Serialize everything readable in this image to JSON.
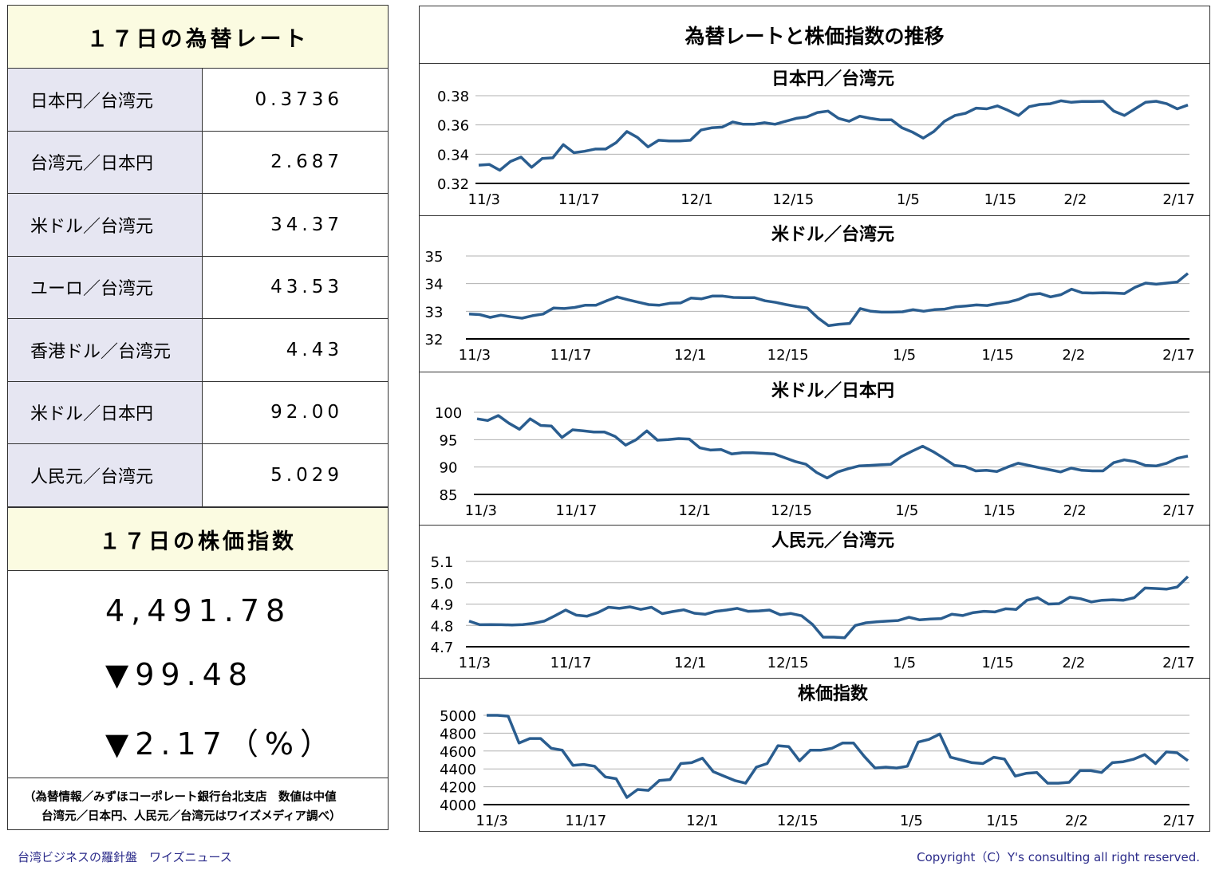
{
  "rates": {
    "title": "１７日の為替レート",
    "rows": [
      {
        "name": "日本円／台湾元",
        "value": "0.3736"
      },
      {
        "name": "台湾元／日本円",
        "value": "2.687"
      },
      {
        "name": "米ドル／台湾元",
        "value": "34.37"
      },
      {
        "name": "ユーロ／台湾元",
        "value": "43.53"
      },
      {
        "name": "香港ドル／台湾元",
        "value": "4.43"
      },
      {
        "name": "米ドル／日本円",
        "value": "92.00"
      },
      {
        "name": "人民元／台湾元",
        "value": "5.029"
      }
    ]
  },
  "stock": {
    "title": "１７日の株価指数",
    "index": "4,491.78",
    "change": "▼99.48",
    "change_pct": "▼2.17（%）"
  },
  "source": {
    "line1": "（為替情報／みずほコーポレート銀行台北支店　数値は中値",
    "line2": "台湾元／日本円、人民元／台湾元はワイズメディア調べ）"
  },
  "trend_title": "為替レートと株価指数の推移",
  "x_labels": [
    "11/3",
    "11/17",
    "12/1",
    "12/15",
    "1/5",
    "1/15",
    "2/2",
    "2/17"
  ],
  "colors": {
    "line": "#2a5d8f",
    "grid": "#b0b0b0",
    "axis": "#000000"
  },
  "chart_data": [
    {
      "type": "line",
      "title": "日本円／台湾元",
      "ylim": [
        0.32,
        0.38
      ],
      "yticks": [
        "0.38",
        "0.36",
        "0.34",
        "0.32"
      ],
      "ytick_values": [
        0.38,
        0.36,
        0.34,
        0.32
      ],
      "values": [
        0.3325,
        0.333,
        0.329,
        0.335,
        0.338,
        0.331,
        0.337,
        0.3375,
        0.3465,
        0.341,
        0.342,
        0.3435,
        0.3435,
        0.348,
        0.3555,
        0.3515,
        0.345,
        0.3495,
        0.349,
        0.349,
        0.3495,
        0.3565,
        0.358,
        0.3585,
        0.362,
        0.3605,
        0.3605,
        0.3615,
        0.3605,
        0.3625,
        0.3645,
        0.3655,
        0.3685,
        0.3695,
        0.3645,
        0.3625,
        0.366,
        0.3645,
        0.3635,
        0.3635,
        0.358,
        0.355,
        0.351,
        0.3555,
        0.3625,
        0.3665,
        0.368,
        0.3715,
        0.371,
        0.373,
        0.37,
        0.3665,
        0.3725,
        0.374,
        0.3745,
        0.3765,
        0.3755,
        0.376,
        0.376,
        0.3762,
        0.3695,
        0.3665,
        0.371,
        0.3755,
        0.3762,
        0.3745,
        0.371,
        0.3736
      ]
    },
    {
      "type": "line",
      "title": "米ドル／台湾元",
      "ylim": [
        32,
        35
      ],
      "yticks": [
        "35",
        "34",
        "33",
        "32"
      ],
      "ytick_values": [
        35,
        34,
        33,
        32
      ],
      "values": [
        32.9,
        32.88,
        32.78,
        32.86,
        32.8,
        32.75,
        32.84,
        32.9,
        33.12,
        33.1,
        33.14,
        33.22,
        33.22,
        33.38,
        33.52,
        33.42,
        33.33,
        33.24,
        33.22,
        33.29,
        33.3,
        33.48,
        33.45,
        33.55,
        33.55,
        33.5,
        33.49,
        33.49,
        33.38,
        33.32,
        33.24,
        33.17,
        33.12,
        32.76,
        32.48,
        32.53,
        32.56,
        33.1,
        33.0,
        32.97,
        32.97,
        32.98,
        33.06,
        33.0,
        33.06,
        33.08,
        33.16,
        33.19,
        33.23,
        33.21,
        33.28,
        33.33,
        33.43,
        33.6,
        33.64,
        33.52,
        33.6,
        33.8,
        33.67,
        33.66,
        33.67,
        33.66,
        33.64,
        33.87,
        34.02,
        33.98,
        34.02,
        34.06,
        34.37
      ]
    },
    {
      "type": "line",
      "title": "米ドル／日本円",
      "ylim": [
        85,
        100
      ],
      "yticks": [
        "100",
        "95",
        "90",
        "85"
      ],
      "ytick_values": [
        100,
        95,
        90,
        85
      ],
      "values": [
        98.8,
        98.5,
        99.4,
        98,
        96.9,
        98.8,
        97.6,
        97.5,
        95.4,
        96.8,
        96.6,
        96.4,
        96.4,
        95.6,
        94,
        95,
        96.6,
        94.9,
        95,
        95.2,
        95.1,
        93.5,
        93.1,
        93.2,
        92.4,
        92.6,
        92.6,
        92.5,
        92.4,
        91.7,
        91,
        90.5,
        89,
        88,
        89.1,
        89.7,
        90.2,
        90.3,
        90.4,
        90.5,
        91.9,
        92.9,
        93.8,
        92.8,
        91.6,
        90.3,
        90.1,
        89.3,
        89.4,
        89.2,
        90,
        90.7,
        90.3,
        89.9,
        89.5,
        89.1,
        89.8,
        89.4,
        89.3,
        89.3,
        90.8,
        91.3,
        91,
        90.3,
        90.2,
        90.7,
        91.6,
        92.0
      ]
    },
    {
      "type": "line",
      "title": "人民元／台湾元",
      "ylim": [
        4.7,
        5.1
      ],
      "yticks": [
        "5.1",
        "5.0",
        "4.9",
        "4.8",
        "4.7"
      ],
      "ytick_values": [
        5.1,
        5.0,
        4.9,
        4.8,
        4.7
      ],
      "values": [
        4.82,
        4.803,
        4.804,
        4.803,
        4.802,
        4.804,
        4.81,
        4.82,
        4.845,
        4.872,
        4.848,
        4.843,
        4.86,
        4.885,
        4.88,
        4.887,
        4.875,
        4.885,
        4.855,
        4.865,
        4.873,
        4.857,
        4.852,
        4.866,
        4.872,
        4.88,
        4.866,
        4.868,
        4.872,
        4.85,
        4.856,
        4.845,
        4.805,
        4.745,
        4.745,
        4.742,
        4.8,
        4.812,
        4.817,
        4.82,
        4.823,
        4.838,
        4.826,
        4.83,
        4.832,
        4.852,
        4.846,
        4.86,
        4.866,
        4.863,
        4.878,
        4.875,
        4.918,
        4.93,
        4.9,
        4.902,
        4.932,
        4.925,
        4.91,
        4.918,
        4.92,
        4.918,
        4.93,
        4.975,
        4.973,
        4.97,
        4.98,
        5.029
      ]
    },
    {
      "type": "line",
      "title": "株価指数",
      "ylim": [
        4000,
        5000
      ],
      "yticks": [
        "5000",
        "4800",
        "4600",
        "4400",
        "4200",
        "4000"
      ],
      "ytick_values": [
        5000,
        4800,
        4600,
        4400,
        4200,
        4000
      ],
      "values": [
        5000,
        5000,
        4990,
        4690,
        4740,
        4740,
        4630,
        4610,
        4440,
        4450,
        4430,
        4310,
        4290,
        4080,
        4170,
        4160,
        4270,
        4280,
        4460,
        4470,
        4520,
        4370,
        4320,
        4270,
        4240,
        4420,
        4460,
        4660,
        4650,
        4490,
        4610,
        4610,
        4630,
        4690,
        4690,
        4540,
        4410,
        4420,
        4410,
        4430,
        4700,
        4730,
        4790,
        4530,
        4500,
        4470,
        4460,
        4530,
        4510,
        4320,
        4350,
        4360,
        4240,
        4240,
        4250,
        4380,
        4380,
        4360,
        4470,
        4480,
        4510,
        4560,
        4460,
        4590,
        4580,
        4491.78
      ]
    }
  ],
  "footer": {
    "left": "台湾ビジネスの羅針盤　ワイズニュース",
    "right": "Copyright（C）Y's consulting all right reserved."
  }
}
